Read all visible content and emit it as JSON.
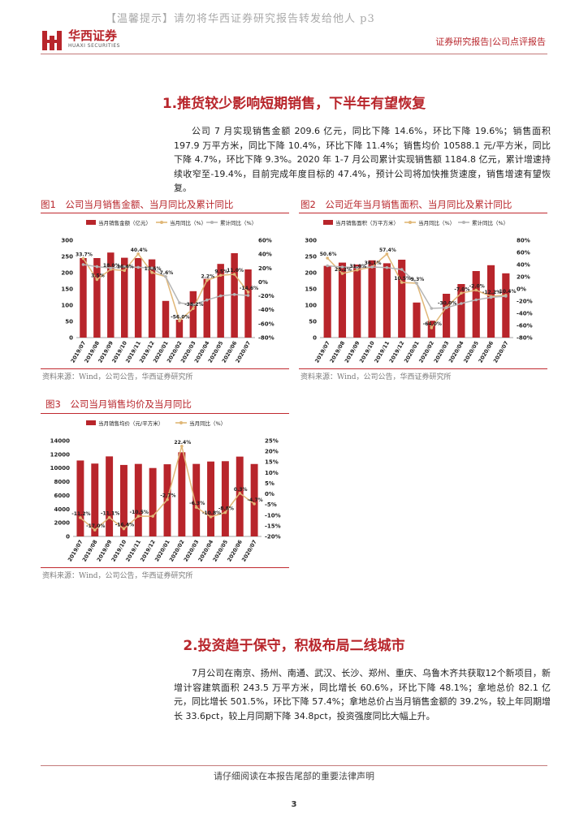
{
  "watermark": "【温馨提示】请勿将华西证券研究报告转发给他人 p3",
  "brand": {
    "name": "华西证券",
    "sub": "HUAXI SECURITIES"
  },
  "report_type": "证券研究报告|公司点评报告",
  "section1": {
    "title": "1.推货较少影响短期销售，下半年有望恢复",
    "paragraph": "公司 7 月实现销售金额 209.6 亿元，同比下降 14.6%，环比下降 19.6%；销售面积 197.9 万平方米，同比下降 10.4%，环比下降 11.4%；销售均价 10588.1 元/平方米，同比下降 4.7%，环比下降 9.3%。2020 年 1-7 月公司累计实现销售额 1184.8 亿元，累计增速持续收窄至-19.4%，目前完成年度目标的 47.4%，预计公司将加快推货速度，销售增速有望恢复。"
  },
  "section2": {
    "title": "2.投资趋于保守，积极布局二线城市",
    "paragraph": "7月公司在南京、扬州、南通、武汉、长沙、郑州、重庆、乌鲁木齐共获取12个新项目，新增计容建筑面积 243.5 万平方米，同比增长 60.6%，环比下降 48.1%；拿地总价 82.1 亿元，同比增长 501.5%，环比下降 57.4%；拿地总价占当月销售金额的 39.2%，较上年同期增长 33.6pct，较上月同期下降 34.8pct，投资强度同比大幅上升。"
  },
  "figures": [
    {
      "title": "图1　公司当月销售金额、当月同比及累计同比",
      "source": "资料来源：Wind，公司公告，华西证券研究所"
    },
    {
      "title": "图2　公司近年当月销售面积、当月同比及累计同比",
      "source": "资料来源：Wind，公司公告，华西证券研究所"
    },
    {
      "title": "图3　公司当月销售均价及当月同比",
      "source": "资料来源：Wind，公司公告，华西证券研究所"
    }
  ],
  "colors": {
    "bar": "#b8252b",
    "yoy": "#e0b777",
    "cum": "#b5b5b5",
    "accent": "#b8252b"
  },
  "footer": {
    "notice": "请仔细阅读在本报告尾部的重要法律声明",
    "page": "3"
  },
  "chart_data": [
    {
      "type": "bar",
      "categories": [
        "2019/07",
        "2019/08",
        "2019/09",
        "2019/10",
        "2019/11",
        "2019/12",
        "2020/01",
        "2020/02",
        "2020/03",
        "2020/04",
        "2020/05",
        "2020/06",
        "2020/07"
      ],
      "series": [
        {
          "name": "当月销售金额（亿元）",
          "kind": "bar",
          "axis": "left",
          "values": [
            245,
            245,
            262,
            246,
            245,
            241,
            113,
            55,
            143,
            181,
            227,
            260,
            210
          ]
        },
        {
          "name": "当月同比（%）",
          "kind": "line",
          "axis": "right",
          "values": [
            33.7,
            3.5,
            18.0,
            16.4,
            40.4,
            13.6,
            7.6,
            -56.0,
            -38.2,
            2.2,
            9.5,
            11.0,
            -14.6
          ]
        },
        {
          "name": "累计同比（%）",
          "kind": "line",
          "axis": "right",
          "values": [
            25,
            22,
            20,
            22,
            21,
            20,
            7.6,
            -30,
            -33,
            -26,
            -20,
            -18,
            -19.4
          ]
        }
      ],
      "point_labels": [
        "33.7%",
        "3.5%",
        "18.0%",
        "16.4%",
        "40.4%",
        "13.6%",
        "7.6%",
        "-56.0%",
        "-38.2%",
        "2.2%",
        "9.5%",
        "11.0%",
        "-14.6%"
      ],
      "ylim": [
        0,
        300
      ],
      "yticks": [
        "0",
        "50",
        "100",
        "150",
        "200",
        "250",
        "300"
      ],
      "y2lim": [
        -80,
        60
      ],
      "y2ticks": [
        "-80%",
        "-60%",
        "-40%",
        "-20%",
        "0%",
        "20%",
        "40%",
        "60%"
      ],
      "legend": "top"
    },
    {
      "type": "bar",
      "categories": [
        "2019/07",
        "2019/08",
        "2019/09",
        "2019/10",
        "2019/11",
        "2019/12",
        "2020/01",
        "2020/02",
        "2020/03",
        "2020/04",
        "2020/05",
        "2020/06",
        "2020/07"
      ],
      "series": [
        {
          "name": "当月销售面积（万平方米）",
          "kind": "bar",
          "axis": "left",
          "values": [
            221,
            231,
            225,
            238,
            229,
            240,
            108,
            52,
            135,
            165,
            205,
            223,
            198
          ]
        },
        {
          "name": "当月同比（%）",
          "kind": "line",
          "axis": "right",
          "values": [
            50.6,
            25.2,
            31.0,
            36.1,
            57.4,
            10.5,
            9.3,
            -64.0,
            -30.0,
            -7.0,
            -2.0,
            -12.2,
            -10.4
          ]
        },
        {
          "name": "累计同比（%）",
          "kind": "line",
          "axis": "right",
          "values": [
            38,
            36,
            35,
            36,
            35,
            32,
            9.3,
            -32,
            -31,
            -24,
            -18,
            -14,
            -12
          ]
        }
      ],
      "point_labels": [
        "50.6%",
        "25.2%",
        "31.0%",
        "36.1%",
        "57.4%",
        "10.5%",
        "9.3%",
        "-64.0%",
        "-30.0%",
        "-7.0%",
        "-2.0%",
        "-12.2%",
        "-10.4%"
      ],
      "ylim": [
        0,
        300
      ],
      "yticks": [
        "0",
        "50",
        "100",
        "150",
        "200",
        "250",
        "300"
      ],
      "y2lim": [
        -80,
        80
      ],
      "y2ticks": [
        "-80%",
        "-60%",
        "-40%",
        "-20%",
        "0%",
        "20%",
        "40%",
        "60%",
        "80%"
      ],
      "legend": "top"
    },
    {
      "type": "bar",
      "categories": [
        "2019/07",
        "2019/08",
        "2019/09",
        "2019/10",
        "2019/11",
        "2019/12",
        "2020/01",
        "2020/02",
        "2020/03",
        "2020/04",
        "2020/05",
        "2020/06",
        "2020/07"
      ],
      "series": [
        {
          "name": "当月销售均价（元/平方米）",
          "kind": "bar",
          "axis": "left",
          "values": [
            11100,
            10650,
            11700,
            10450,
            10600,
            10000,
            10550,
            12300,
            10600,
            10950,
            11000,
            11670,
            10588
          ]
        },
        {
          "name": "当月同比（%）",
          "kind": "line",
          "axis": "right",
          "values": [
            -11.2,
            -17.0,
            -11.1,
            -16.4,
            -10.5,
            -10.5,
            -2.7,
            22.4,
            -6.3,
            -10.8,
            -8.8,
            0.3,
            -4.7
          ]
        }
      ],
      "point_labels": [
        "-11.2%",
        "-17.0%",
        "-11.1%",
        "-16.4%",
        "-10.5%",
        "",
        "-2.7%",
        "22.4%",
        "-6.3%",
        "-10.8%",
        "-8.8%",
        "0.3%",
        "-4.7%"
      ],
      "ylim": [
        0,
        14000
      ],
      "yticks": [
        "0",
        "2000",
        "4000",
        "6000",
        "8000",
        "10000",
        "12000",
        "14000"
      ],
      "y2lim": [
        -20,
        25
      ],
      "y2ticks": [
        "-20%",
        "-15%",
        "-10%",
        "-5%",
        "0%",
        "5%",
        "10%",
        "15%",
        "20%",
        "25%"
      ],
      "legend": "top"
    }
  ]
}
